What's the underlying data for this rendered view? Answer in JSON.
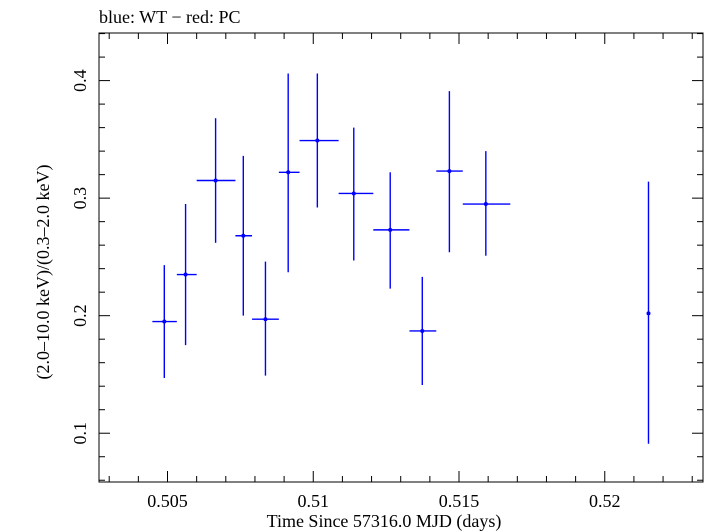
{
  "chart_data": {
    "type": "scatter",
    "title": "blue: WT − red: PC",
    "xlabel": "Time Since 57316.0 MJD (days)",
    "ylabel": "(2.0–10.0 keV)/(0.3–2.0 keV)",
    "xlim": [
      0.50265,
      0.52337
    ],
    "ylim": [
      0.0585,
      0.4405
    ],
    "x_ticks": [
      {
        "value": 0.505,
        "label": "0.505"
      },
      {
        "value": 0.51,
        "label": "0.51"
      },
      {
        "value": 0.515,
        "label": "0.515"
      },
      {
        "value": 0.52,
        "label": "0.52"
      }
    ],
    "y_ticks": [
      {
        "value": 0.1,
        "label": "0.1"
      },
      {
        "value": 0.2,
        "label": "0.2"
      },
      {
        "value": 0.3,
        "label": "0.3"
      },
      {
        "value": 0.4,
        "label": "0.4"
      }
    ],
    "grid": false,
    "series": [
      {
        "color": "#0000ff",
        "points": [
          {
            "x": 0.50489,
            "y": 0.195,
            "x_lo": 0.50448,
            "x_hi": 0.50532,
            "y_lo": 0.147,
            "y_hi": 0.243
          },
          {
            "x": 0.50562,
            "y": 0.235,
            "x_lo": 0.50532,
            "x_hi": 0.506,
            "y_lo": 0.175,
            "y_hi": 0.295
          },
          {
            "x": 0.50665,
            "y": 0.315,
            "x_lo": 0.506,
            "x_hi": 0.50733,
            "y_lo": 0.262,
            "y_hi": 0.368
          },
          {
            "x": 0.5076,
            "y": 0.268,
            "x_lo": 0.50733,
            "x_hi": 0.5079,
            "y_lo": 0.2,
            "y_hi": 0.336
          },
          {
            "x": 0.50836,
            "y": 0.197,
            "x_lo": 0.5079,
            "x_hi": 0.50882,
            "y_lo": 0.149,
            "y_hi": 0.246
          },
          {
            "x": 0.50914,
            "y": 0.322,
            "x_lo": 0.50882,
            "x_hi": 0.50953,
            "y_lo": 0.237,
            "y_hi": 0.406
          },
          {
            "x": 0.51014,
            "y": 0.349,
            "x_lo": 0.50953,
            "x_hi": 0.51087,
            "y_lo": 0.292,
            "y_hi": 0.406
          },
          {
            "x": 0.51139,
            "y": 0.304,
            "x_lo": 0.51087,
            "x_hi": 0.51206,
            "y_lo": 0.247,
            "y_hi": 0.36
          },
          {
            "x": 0.51264,
            "y": 0.273,
            "x_lo": 0.51206,
            "x_hi": 0.5133,
            "y_lo": 0.223,
            "y_hi": 0.322
          },
          {
            "x": 0.51374,
            "y": 0.187,
            "x_lo": 0.5133,
            "x_hi": 0.51422,
            "y_lo": 0.141,
            "y_hi": 0.233
          },
          {
            "x": 0.51467,
            "y": 0.323,
            "x_lo": 0.51422,
            "x_hi": 0.51513,
            "y_lo": 0.254,
            "y_hi": 0.391
          },
          {
            "x": 0.51592,
            "y": 0.295,
            "x_lo": 0.51513,
            "x_hi": 0.51676,
            "y_lo": 0.251,
            "y_hi": 0.34
          },
          {
            "x": 0.5215,
            "y": 0.202,
            "x_lo": 0.5215,
            "x_hi": 0.5215,
            "y_lo": 0.091,
            "y_hi": 0.314
          }
        ]
      }
    ]
  }
}
